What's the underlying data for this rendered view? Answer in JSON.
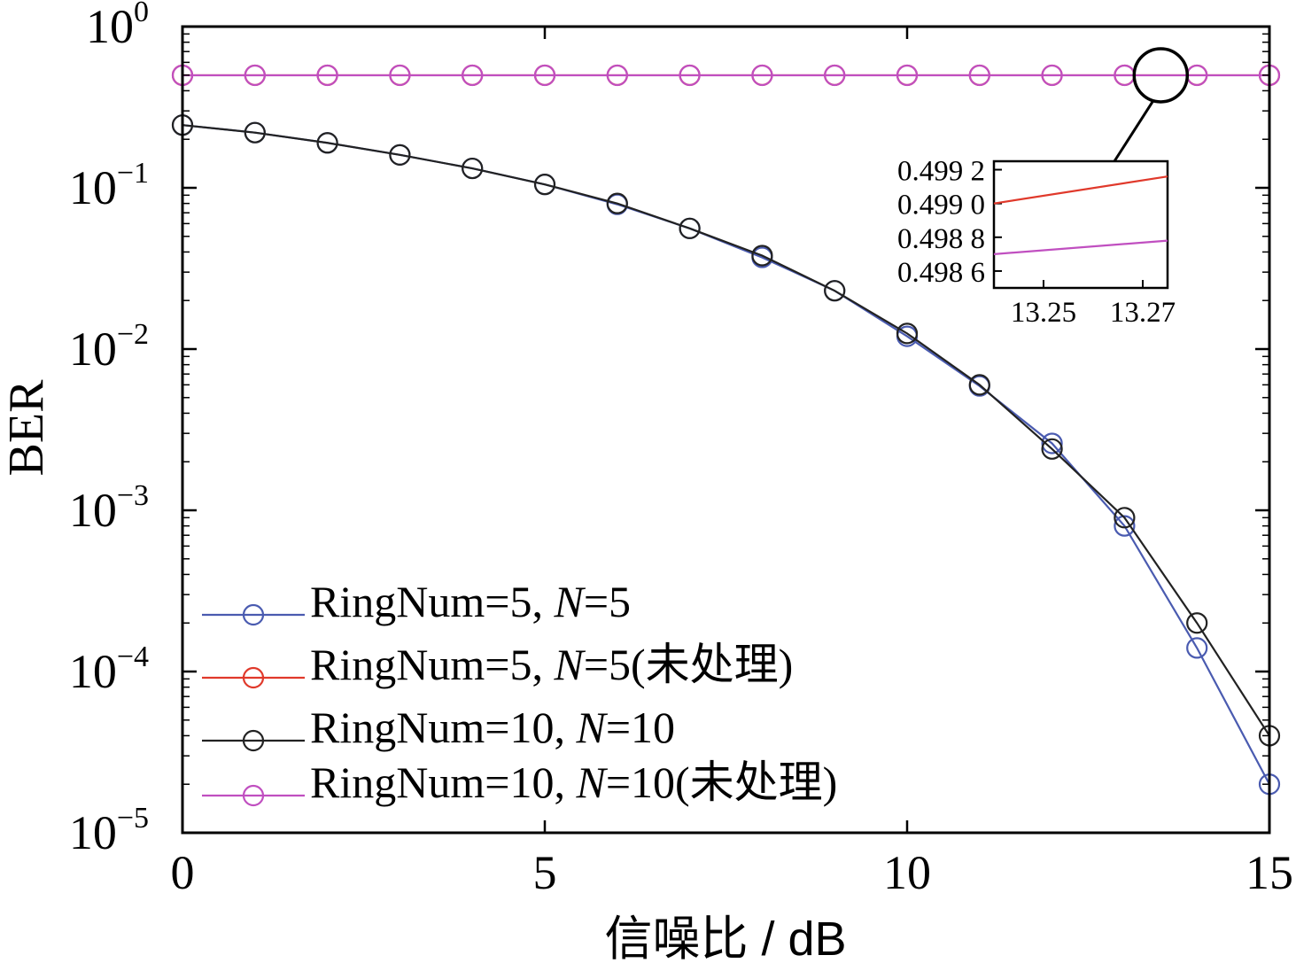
{
  "chart_data": [
    {
      "type": "line",
      "xlabel": "信噪比 / dB",
      "ylabel": "BER",
      "xlim": [
        0,
        15
      ],
      "ylim": [
        1e-05,
        1
      ],
      "yscale": "log",
      "x_ticks": [
        "0",
        "5",
        "10",
        "15"
      ],
      "y_ticks": [
        {
          "base": "10",
          "exp": "0"
        },
        {
          "base": "10",
          "exp": "−1"
        },
        {
          "base": "10",
          "exp": "−2"
        },
        {
          "base": "10",
          "exp": "−3"
        },
        {
          "base": "10",
          "exp": "−4"
        },
        {
          "base": "10",
          "exp": "−5"
        }
      ],
      "legend_position": "lower-left",
      "grid": false,
      "x": [
        0,
        1,
        2,
        3,
        4,
        5,
        6,
        7,
        8,
        9,
        10,
        11,
        12,
        13,
        14,
        15
      ],
      "series": [
        {
          "name": "RingNum=5, N=5",
          "legend_parts": [
            {
              "t": "RingNum=5, ",
              "i": false
            },
            {
              "t": "N",
              "i": true
            },
            {
              "t": "=5",
              "i": false
            }
          ],
          "color": "#4a5bb0",
          "values": [
            0.245,
            0.22,
            0.19,
            0.16,
            0.132,
            0.105,
            0.079,
            0.056,
            0.037,
            0.023,
            0.012,
            0.0059,
            0.0026,
            0.0008,
            0.00014,
            2e-05
          ]
        },
        {
          "name": "RingNum=5, N=5(未处理)",
          "legend_parts": [
            {
              "t": "RingNum=5, ",
              "i": false
            },
            {
              "t": "N",
              "i": true
            },
            {
              "t": "=5(未处理)",
              "i": false
            }
          ],
          "color": "#e0392b",
          "values": [
            0.4991,
            0.4991,
            0.4991,
            0.4991,
            0.4991,
            0.4991,
            0.4991,
            0.4991,
            0.4991,
            0.4991,
            0.4991,
            0.4991,
            0.4991,
            0.4991,
            0.4991,
            0.4991
          ]
        },
        {
          "name": "RingNum=10, N=10",
          "legend_parts": [
            {
              "t": "RingNum=10, ",
              "i": false
            },
            {
              "t": "N",
              "i": true
            },
            {
              "t": "=10",
              "i": false
            }
          ],
          "color": "#222222",
          "values": [
            0.245,
            0.22,
            0.19,
            0.16,
            0.132,
            0.105,
            0.08,
            0.056,
            0.038,
            0.023,
            0.0125,
            0.006,
            0.0024,
            0.0009,
            0.0002,
            4e-05
          ]
        },
        {
          "name": "RingNum=10, N=10(未处理)",
          "legend_parts": [
            {
              "t": "RingNum=10, ",
              "i": false
            },
            {
              "t": "N",
              "i": true
            },
            {
              "t": "=10(未处理)",
              "i": false
            }
          ],
          "color": "#c04fc0",
          "values": [
            0.4988,
            0.4988,
            0.4988,
            0.4988,
            0.4988,
            0.4988,
            0.4988,
            0.4988,
            0.4988,
            0.4988,
            0.4988,
            0.4988,
            0.4988,
            0.4988,
            0.4988,
            0.4988
          ]
        }
      ]
    },
    {
      "type": "line",
      "role": "inset-zoom",
      "zoom_target": {
        "x": 13.5,
        "y": 0.499
      },
      "xlim": [
        13.24,
        13.275
      ],
      "ylim": [
        0.4985,
        0.49925
      ],
      "x_ticks": [
        {
          "v": 13.25,
          "label": "13.25"
        },
        {
          "v": 13.27,
          "label": "13.27"
        }
      ],
      "y_ticks": [
        {
          "v": 0.4992,
          "label": "0.499 2"
        },
        {
          "v": 0.499,
          "label": "0.499 0"
        },
        {
          "v": 0.4988,
          "label": "0.498 8"
        },
        {
          "v": 0.4986,
          "label": "0.498 6"
        }
      ],
      "series": [
        {
          "name": "RingNum=5, N=5(未处理)",
          "color": "#e0392b",
          "x": [
            13.24,
            13.275
          ],
          "values": [
            0.499,
            0.49916
          ]
        },
        {
          "name": "RingNum=10, N=10(未处理)",
          "color": "#c04fc0",
          "x": [
            13.24,
            13.275
          ],
          "values": [
            0.4987,
            0.49878
          ]
        }
      ]
    }
  ]
}
